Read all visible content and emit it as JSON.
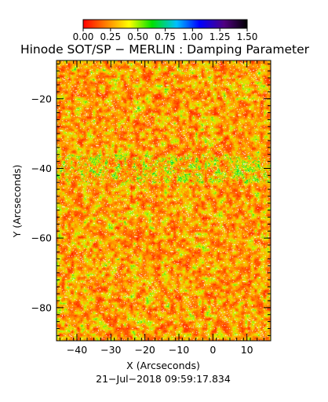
{
  "chart_data": {
    "type": "heatmap",
    "title": "Hinode SOT/SP − MERLIN : Damping Parameter",
    "xlabel": "X (Arcseconds)",
    "ylabel": "Y (Arcseconds)",
    "timestamp": "21−Jul−2018 09:59:17.834",
    "xlim": [
      -46,
      17
    ],
    "ylim": [
      -89.5,
      -9
    ],
    "x_ticks": [
      -40,
      -30,
      -20,
      -10,
      0,
      10
    ],
    "y_ticks": [
      -20,
      -40,
      -60,
      -80
    ],
    "colorbar": {
      "range": [
        0,
        1.5
      ],
      "ticks": [
        0.0,
        0.25,
        0.5,
        0.75,
        1.0,
        1.25,
        1.5
      ],
      "tick_labels": [
        "0.00",
        "0.25",
        "0.50",
        "0.75",
        "1.00",
        "1.25",
        "1.50"
      ],
      "colors": [
        "#ff0000",
        "#ff8000",
        "#ffff00",
        "#00e000",
        "#00c0ff",
        "#0000ff",
        "#500080",
        "#000000"
      ]
    },
    "field_description": "damping parameter map, values mostly 0.0-0.5 (red/orange) with scattered yellow-green patches near 0.4-0.6"
  }
}
